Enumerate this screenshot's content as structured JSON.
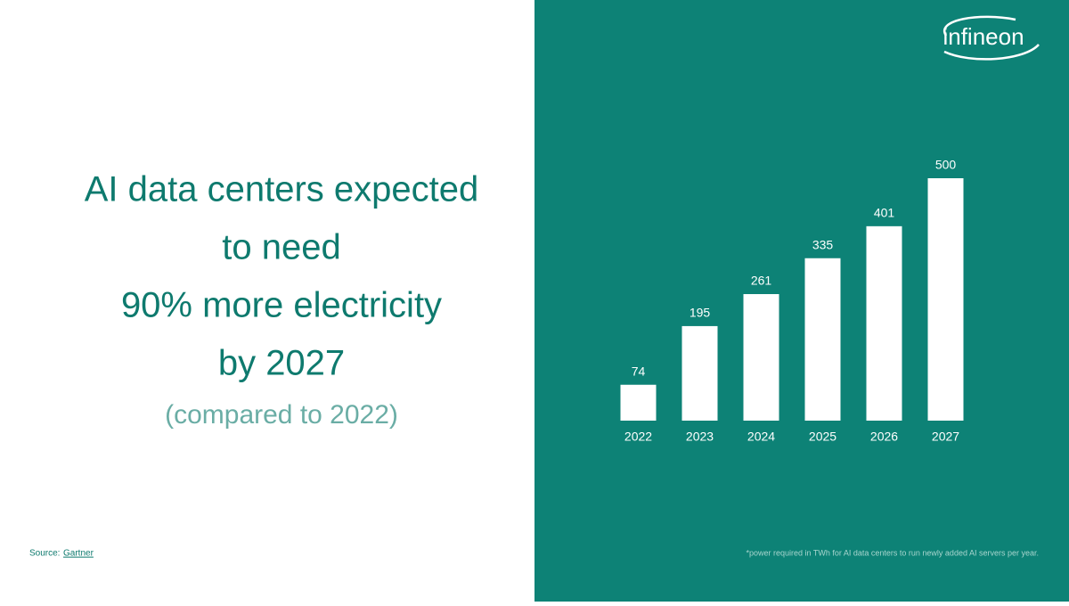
{
  "headline": [
    "AI data centers expected",
    "to need",
    "90% more electricity",
    "by 2027"
  ],
  "subheadline": "(compared to 2022)",
  "source": {
    "label": "Source:",
    "link": "Gartner"
  },
  "logo": "infineon",
  "chart_data": {
    "type": "bar",
    "categories": [
      "2022",
      "2023",
      "2024",
      "2025",
      "2026",
      "2027"
    ],
    "values": [
      74,
      195,
      261,
      335,
      401,
      500
    ],
    "color": "#ffffff",
    "footnote": "*power required in TWh for AI data centers to run newly added AI servers per year."
  }
}
